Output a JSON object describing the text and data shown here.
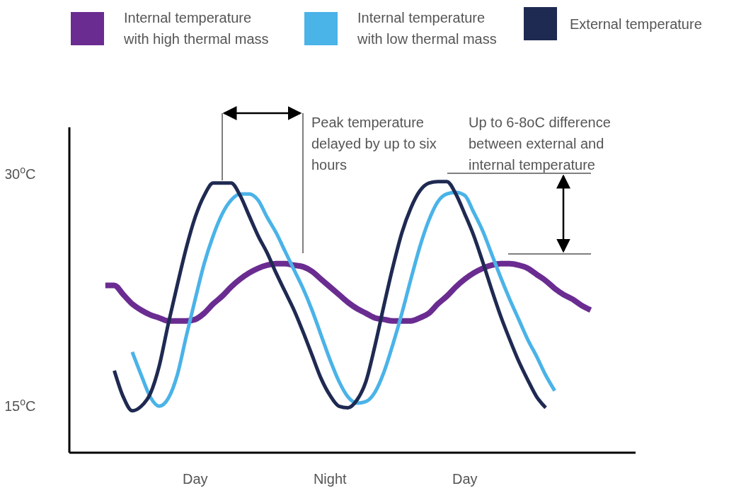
{
  "chart_data": {
    "type": "line",
    "ylim": [
      12,
      33
    ],
    "categories": [
      null,
      null,
      null,
      null,
      null,
      null,
      null,
      null,
      null,
      null,
      null,
      null,
      null,
      null,
      "Day",
      null,
      null,
      null,
      null,
      null,
      null,
      null,
      null,
      null,
      null,
      null,
      null,
      null,
      null,
      "Night",
      null,
      null,
      null,
      null,
      null,
      null,
      null,
      null,
      null,
      null,
      null,
      null,
      null,
      null,
      "Day",
      null,
      null,
      null,
      null,
      null,
      null,
      null,
      null,
      null,
      null,
      null,
      null,
      null,
      null,
      null,
      null,
      null,
      null,
      null
    ],
    "yticks": [
      {
        "value": 15,
        "label": "15$^{o}$C"
      },
      {
        "value": 30,
        "label": "30$^{o}$C"
      }
    ],
    "legend": "top",
    "marker": "none",
    "line_style": "solid",
    "annotations": [
      "Peak temperature delayed by up to six hours",
      "Up to 6-8oC difference between external and internal temperature"
    ],
    "series": [
      {
        "name": "Internal temperature with high thermal mass",
        "color": "#6a2c91",
        "values": [
          null,
          null,
          null,
          null,
          22.8,
          22.8,
          22.2,
          21.6,
          21.2,
          20.9,
          20.7,
          20.5,
          20.5,
          20.5,
          20.6,
          21.0,
          21.6,
          22.1,
          22.7,
          23.2,
          23.6,
          23.9,
          24.1,
          24.2,
          24.2,
          24.1,
          24.0,
          23.7,
          23.2,
          22.7,
          22.2,
          21.7,
          21.3,
          21.0,
          20.7,
          20.6,
          20.5,
          20.5,
          20.5,
          20.7,
          21.0,
          21.6,
          22.1,
          22.7,
          23.2,
          23.6,
          23.9,
          24.1,
          24.2,
          24.2,
          24.1,
          23.9,
          23.5,
          23.1,
          22.6,
          22.2,
          21.9,
          21.5,
          21.2,
          null,
          null,
          null,
          null,
          null
        ]
      },
      {
        "name": "Internal temperature with low thermal mass",
        "color": "#4ab3e8",
        "values": [
          null,
          null,
          null,
          null,
          null,
          null,
          null,
          18.5,
          17.0,
          15.6,
          15.0,
          15.5,
          17.0,
          19.5,
          21.9,
          24.2,
          26.0,
          27.4,
          28.3,
          28.7,
          28.7,
          28.3,
          27.2,
          26.2,
          25.0,
          23.8,
          22.6,
          21.2,
          19.6,
          18.0,
          16.6,
          15.6,
          15.2,
          15.3,
          15.9,
          17.2,
          19.0,
          21.0,
          23.2,
          25.3,
          27.0,
          28.2,
          28.7,
          28.8,
          28.6,
          27.5,
          26.3,
          24.8,
          23.3,
          21.9,
          20.6,
          19.3,
          18.2,
          17.0,
          16.0,
          null,
          null,
          null,
          null,
          null,
          null,
          null,
          null,
          null
        ]
      },
      {
        "name": "External temperature",
        "color": "#1f2a52",
        "values": [
          null,
          null,
          null,
          null,
          null,
          17.3,
          15.6,
          14.7,
          15.0,
          15.8,
          17.6,
          20.3,
          22.8,
          25.2,
          27.2,
          28.6,
          29.4,
          29.4,
          29.4,
          28.6,
          27.3,
          26.0,
          24.9,
          23.6,
          22.4,
          21.2,
          19.8,
          18.3,
          16.8,
          15.7,
          15.0,
          14.9,
          15.4,
          16.6,
          18.9,
          21.5,
          24.0,
          26.2,
          27.8,
          28.9,
          29.4,
          29.5,
          29.5,
          28.7,
          27.4,
          26.0,
          24.3,
          22.5,
          20.8,
          19.3,
          17.9,
          16.7,
          15.6,
          14.9,
          null,
          null,
          null,
          null,
          null,
          null,
          null,
          null,
          null,
          null
        ]
      }
    ]
  }
}
